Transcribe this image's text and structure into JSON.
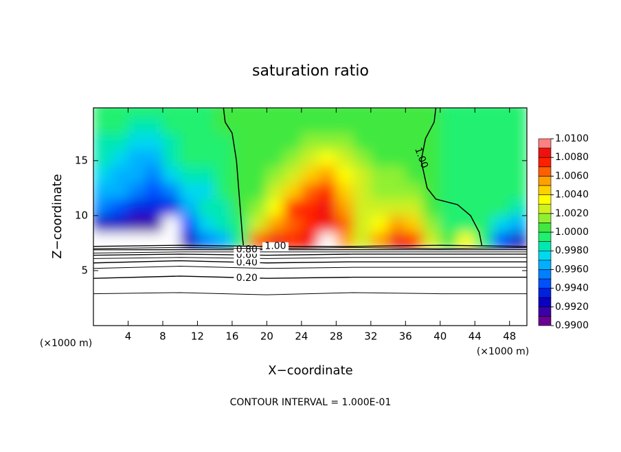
{
  "chart_data": {
    "type": "contour",
    "title": "saturation ratio",
    "xlabel": "X−coordinate",
    "ylabel": "Z−coordinate",
    "xunit": "(×1000 m)",
    "yunit": "(×1000 m)",
    "footer": "CONTOUR INTERVAL = 1.000E-01",
    "xlim": [
      0,
      50
    ],
    "ylim": [
      0,
      19.8
    ],
    "xticks": [
      4,
      8,
      12,
      16,
      20,
      24,
      28,
      32,
      36,
      40,
      44,
      48
    ],
    "yticks": [
      5,
      10,
      15
    ],
    "z_x": [
      1,
      3,
      5,
      7,
      9,
      11,
      13,
      15,
      17,
      19,
      21,
      23,
      25,
      27,
      29,
      31,
      33,
      35,
      37,
      39,
      41,
      43,
      45,
      47,
      49
    ],
    "z_y": [
      7.75,
      9.25,
      10.75,
      12.25,
      13.75,
      15.25,
      16.75,
      18.25,
      19.75
    ],
    "z": [
      [
        0.985,
        0.992,
        0.995,
        0.996,
        0.997,
        0.998,
        0.9985,
        0.999,
        0.999
      ],
      [
        0.985,
        0.992,
        0.994,
        0.996,
        0.996,
        0.997,
        0.998,
        0.999,
        0.999
      ],
      [
        0.985,
        0.991,
        0.993,
        0.995,
        0.996,
        0.996,
        0.997,
        0.998,
        0.999
      ],
      [
        0.985,
        0.991,
        0.993,
        0.994,
        0.995,
        0.996,
        0.997,
        0.998,
        0.999
      ],
      [
        0.985,
        0.985,
        0.993,
        0.995,
        0.997,
        0.998,
        0.9985,
        0.999,
        0.999
      ],
      [
        0.992,
        0.994,
        0.996,
        0.997,
        0.998,
        0.999,
        0.9995,
        0.9995,
        0.9995
      ],
      [
        0.995,
        0.997,
        0.998,
        0.997,
        0.998,
        0.999,
        0.9995,
        0.9995,
        0.9995
      ],
      [
        0.996,
        0.998,
        0.998,
        0.999,
        0.999,
        0.9995,
        0.9995,
        1.0,
        1.0
      ],
      [
        0.999,
        0.9995,
        1.0,
        1.0,
        1.0,
        1.0,
        1.0005,
        1.0005,
        1.0005
      ],
      [
        1.006,
        1.002,
        1.001,
        1.0005,
        1.0005,
        1.0005,
        1.0005,
        1.0005,
        1.0005
      ],
      [
        1.008,
        1.005,
        1.003,
        1.002,
        1.001,
        1.0005,
        1.0005,
        1.0005,
        1.0005
      ],
      [
        1.007,
        1.006,
        1.007,
        1.004,
        1.002,
        1.001,
        1.0005,
        1.0005,
        1.0005
      ],
      [
        1.008,
        1.007,
        1.007,
        1.006,
        1.004,
        1.002,
        1.001,
        1.0005,
        1.0005
      ],
      [
        0.985,
        1.008,
        1.008,
        1.007,
        1.005,
        1.003,
        1.001,
        1.0005,
        1.0005
      ],
      [
        1.005,
        1.006,
        1.005,
        1.004,
        1.003,
        1.002,
        1.001,
        1.0005,
        1.0005
      ],
      [
        1.002,
        1.002,
        1.002,
        1.002,
        1.002,
        1.001,
        1.0005,
        1.0005,
        1.0005
      ],
      [
        1.005,
        1.003,
        1.002,
        1.001,
        1.001,
        1.0005,
        1.0005,
        1.0005,
        1.0005
      ],
      [
        1.008,
        1.005,
        1.002,
        1.001,
        1.001,
        1.0005,
        1.0005,
        1.0005,
        1.0005
      ],
      [
        1.007,
        1.004,
        1.002,
        1.001,
        1.0005,
        1.0005,
        1.0005,
        1.0005,
        1.0005
      ],
      [
        1.002,
        1.001,
        1.0005,
        1.0005,
        1.0005,
        1.0005,
        1.0005,
        1.0005,
        1.0005
      ],
      [
        1.0,
        0.9995,
        0.9995,
        0.9995,
        0.9995,
        0.9995,
        0.9995,
        0.9995,
        0.9995
      ],
      [
        1.003,
        0.9995,
        0.9995,
        0.9995,
        0.9995,
        0.9995,
        0.9995,
        0.9995,
        0.9995
      ],
      [
        0.9995,
        0.9995,
        0.9995,
        0.9995,
        0.9995,
        0.9995,
        0.9995,
        0.9995,
        0.9995
      ],
      [
        0.994,
        0.997,
        0.999,
        0.9995,
        0.9995,
        0.9995,
        0.9995,
        0.9995,
        0.9995
      ],
      [
        0.992,
        0.996,
        0.998,
        0.9995,
        0.9995,
        0.9995,
        0.9995,
        0.9995,
        0.9995
      ]
    ],
    "colorbar": {
      "levels": [
        0.99,
        0.991,
        0.992,
        0.993,
        0.994,
        0.995,
        0.996,
        0.997,
        0.998,
        0.999,
        1.0,
        1.001,
        1.002,
        1.003,
        1.004,
        1.005,
        1.006,
        1.007,
        1.008,
        1.009,
        1.01
      ],
      "colors": [
        "#6a0090",
        "#3c00a8",
        "#0a00c0",
        "#0020e0",
        "#0050ff",
        "#0080ff",
        "#00b0ff",
        "#00d8f0",
        "#00e8b0",
        "#20f070",
        "#40e840",
        "#90f030",
        "#d0f020",
        "#ffff00",
        "#ffd000",
        "#ffa000",
        "#ff6000",
        "#ff2000",
        "#f01010",
        "#ff8080"
      ],
      "ticks": [
        {
          "value": 0.99,
          "label": "0.9900"
        },
        {
          "value": 0.992,
          "label": "0.9920"
        },
        {
          "value": 0.994,
          "label": "0.9940"
        },
        {
          "value": 0.996,
          "label": "0.9960"
        },
        {
          "value": 0.998,
          "label": "0.9980"
        },
        {
          "value": 1.0,
          "label": "1.0000"
        },
        {
          "value": 1.002,
          "label": "1.0020"
        },
        {
          "value": 1.004,
          "label": "1.0040"
        },
        {
          "value": 1.006,
          "label": "1.0060"
        },
        {
          "value": 1.008,
          "label": "1.0080"
        },
        {
          "value": 1.01,
          "label": "1.0100"
        }
      ]
    },
    "contour_x": [
      0,
      10,
      20,
      30,
      40,
      50
    ],
    "lower_contours": [
      {
        "y": [
          2.9,
          3.0,
          2.8,
          3.0,
          2.9,
          2.9
        ]
      },
      {
        "label": "0.20",
        "y": [
          4.3,
          4.5,
          4.3,
          4.4,
          4.4,
          4.4
        ]
      },
      {
        "y": [
          5.2,
          5.4,
          5.2,
          5.3,
          5.3,
          5.3
        ]
      },
      {
        "label": "0.40",
        "y": [
          5.7,
          5.9,
          5.7,
          5.8,
          5.8,
          5.8
        ]
      },
      {
        "y": [
          6.1,
          6.2,
          6.1,
          6.2,
          6.2,
          6.2
        ]
      },
      {
        "label": "0.60",
        "y": [
          6.4,
          6.5,
          6.4,
          6.5,
          6.5,
          6.5
        ]
      },
      {
        "y": [
          6.6,
          6.7,
          6.7,
          6.7,
          6.7,
          6.7
        ]
      },
      {
        "label": "0.80",
        "y": [
          6.9,
          6.9,
          6.9,
          6.9,
          6.9,
          6.9
        ]
      },
      {
        "y": [
          7.0,
          7.1,
          7.0,
          7.1,
          7.0,
          7.1
        ]
      },
      {
        "label": "1.00",
        "y": [
          7.2,
          7.3,
          7.2,
          7.2,
          7.3,
          7.2
        ]
      }
    ],
    "upper_contours": [
      {
        "x": [
          15,
          15.2,
          16,
          16.5,
          16.8,
          17,
          17.2,
          17.3
        ],
        "y": [
          19.8,
          18.5,
          17.5,
          15,
          12,
          10,
          8,
          7.3
        ]
      },
      {
        "label": "1.00",
        "x": [
          39.5,
          39.3,
          38.3,
          37.8,
          38.5,
          39.5,
          42,
          43.5,
          44.5,
          44.8
        ],
        "y": [
          19.8,
          18.5,
          17,
          15,
          12.5,
          11.5,
          11,
          10,
          8.5,
          7.3
        ]
      }
    ]
  }
}
